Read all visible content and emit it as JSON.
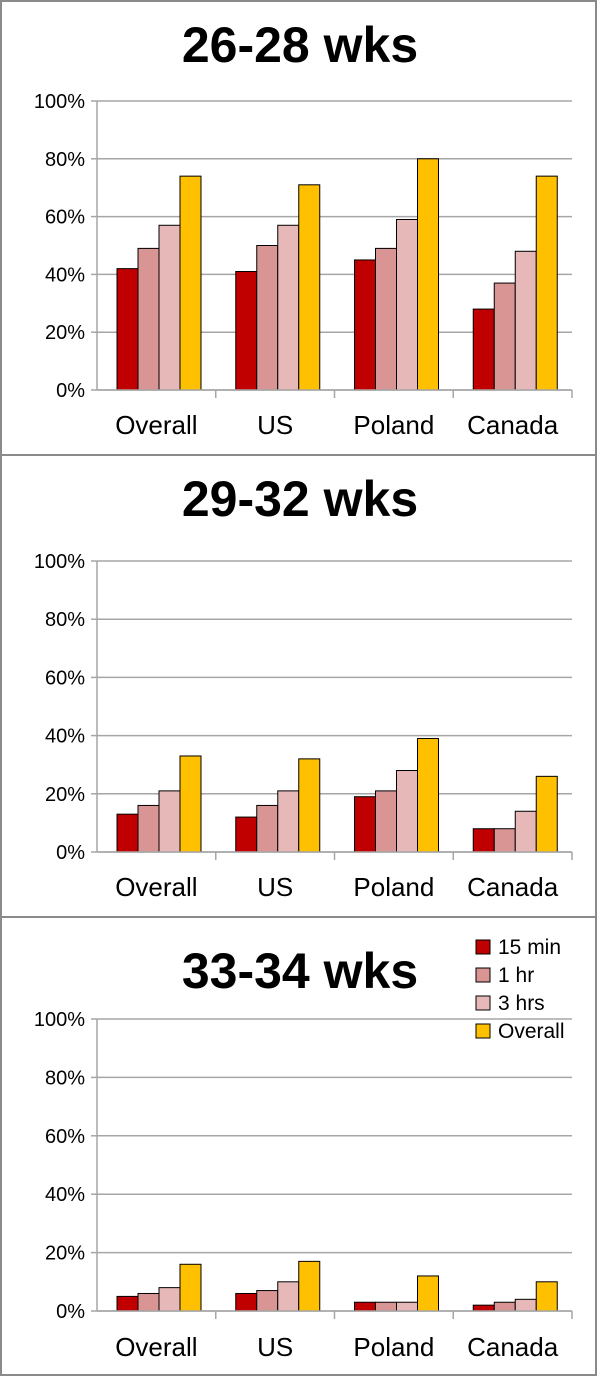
{
  "colors": {
    "series": [
      "#c00000",
      "#d99594",
      "#e6b9b8",
      "#ffc000"
    ],
    "edge": "#000000",
    "grid": "#a6a6a6"
  },
  "chart_data": [
    {
      "type": "bar",
      "title": "26-28 wks",
      "categories": [
        "Overall",
        "US",
        "Poland",
        "Canada"
      ],
      "series": [
        {
          "name": "15 min",
          "values": [
            42,
            41,
            45,
            28
          ]
        },
        {
          "name": "1 hr",
          "values": [
            49,
            50,
            49,
            37
          ]
        },
        {
          "name": "3 hrs",
          "values": [
            57,
            57,
            59,
            48
          ]
        },
        {
          "name": "Overall",
          "values": [
            74,
            71,
            80,
            74
          ]
        }
      ],
      "yticks": [
        "0%",
        "20%",
        "40%",
        "60%",
        "80%",
        "100%"
      ],
      "ylim": [
        0,
        100
      ],
      "grid": true,
      "legend": "none"
    },
    {
      "type": "bar",
      "title": "29-32 wks",
      "categories": [
        "Overall",
        "US",
        "Poland",
        "Canada"
      ],
      "series": [
        {
          "name": "15 min",
          "values": [
            13,
            12,
            19,
            8
          ]
        },
        {
          "name": "1 hr",
          "values": [
            16,
            16,
            21,
            8
          ]
        },
        {
          "name": "3 hrs",
          "values": [
            21,
            21,
            28,
            14
          ]
        },
        {
          "name": "Overall",
          "values": [
            33,
            32,
            39,
            26
          ]
        }
      ],
      "yticks": [
        "0%",
        "20%",
        "40%",
        "60%",
        "80%",
        "100%"
      ],
      "ylim": [
        0,
        100
      ],
      "grid": true,
      "legend": "none"
    },
    {
      "type": "bar",
      "title": "33-34 wks",
      "categories": [
        "Overall",
        "US",
        "Poland",
        "Canada"
      ],
      "series": [
        {
          "name": "15 min",
          "values": [
            5,
            6,
            3,
            2
          ]
        },
        {
          "name": "1 hr",
          "values": [
            6,
            7,
            3,
            3
          ]
        },
        {
          "name": "3 hrs",
          "values": [
            8,
            10,
            3,
            4
          ]
        },
        {
          "name": "Overall",
          "values": [
            16,
            17,
            12,
            10
          ]
        }
      ],
      "yticks": [
        "0%",
        "20%",
        "40%",
        "60%",
        "80%",
        "100%"
      ],
      "ylim": [
        0,
        100
      ],
      "grid": true,
      "legend": "top-right"
    }
  ]
}
